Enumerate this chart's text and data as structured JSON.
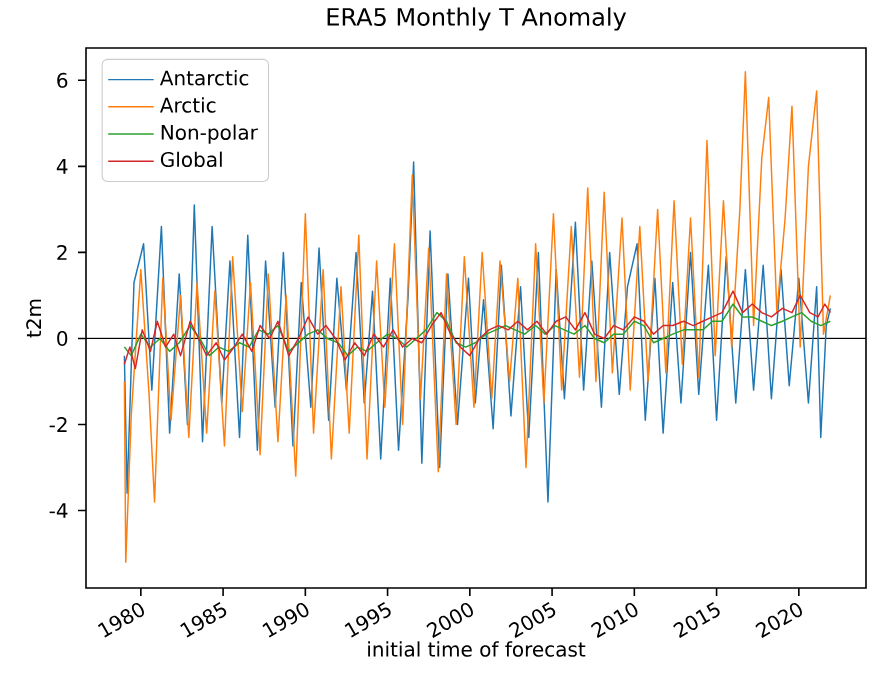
{
  "chart_data": {
    "type": "line",
    "title": "ERA5 Monthly T Anomaly",
    "xlabel": "initial time of forecast",
    "ylabel": "t2m",
    "xlim": [
      "1976-09",
      "2024-02"
    ],
    "xticks": [
      "1980",
      "1985",
      "1990",
      "1995",
      "2000",
      "2005",
      "2010",
      "2015",
      "2020"
    ],
    "ylim": [
      -5.8,
      6.75
    ],
    "yticks": [
      -4,
      -2,
      0,
      2,
      4,
      6
    ],
    "grid": false,
    "legend": "top left",
    "marker": "none",
    "line_style": "solid",
    "ref_lines": [
      {
        "axis": "y",
        "value": 0,
        "color": "#000000"
      }
    ],
    "series": [
      {
        "name": "Antarctic",
        "color": "#1f77b4",
        "x": [
          "1979-01",
          "1979-03",
          "1979-08",
          "1980-03",
          "1980-09",
          "1981-04",
          "1981-10",
          "1982-05",
          "1982-11",
          "1983-04",
          "1983-10",
          "1984-05",
          "1984-12",
          "1985-06",
          "1986-01",
          "1986-07",
          "1987-02",
          "1987-08",
          "1988-03",
          "1988-09",
          "1989-04",
          "1989-10",
          "1990-05",
          "1990-11",
          "1991-06",
          "1991-12",
          "1992-07",
          "1993-02",
          "1993-08",
          "1994-02",
          "1994-08",
          "1995-03",
          "1995-09",
          "1996-04",
          "1996-08",
          "1997-02",
          "1997-08",
          "1998-03",
          "1998-09",
          "1999-04",
          "1999-12",
          "2000-05",
          "2000-11",
          "2001-06",
          "2001-12",
          "2002-07",
          "2003-02",
          "2003-08",
          "2004-03",
          "2004-10",
          "2005-04",
          "2005-10",
          "2006-06",
          "2006-12",
          "2007-06",
          "2008-01",
          "2008-07",
          "2009-02",
          "2009-08",
          "2010-03",
          "2010-09",
          "2011-04",
          "2011-10",
          "2012-05",
          "2012-11",
          "2013-06",
          "2013-12",
          "2014-07",
          "2015-01",
          "2015-08",
          "2016-03",
          "2016-10",
          "2017-04",
          "2017-11",
          "2018-05",
          "2018-12",
          "2019-06",
          "2020-01",
          "2020-08",
          "2021-02",
          "2021-05",
          "2021-09",
          "2021-12"
        ],
        "values": [
          -0.4,
          -3.6,
          1.3,
          2.2,
          -1.2,
          2.6,
          -2.2,
          1.5,
          -2.0,
          3.1,
          -2.4,
          2.6,
          -1.5,
          1.8,
          -2.3,
          2.4,
          -2.6,
          1.8,
          -1.6,
          2.0,
          -2.5,
          1.3,
          -1.6,
          2.1,
          -1.9,
          1.4,
          -1.2,
          2.0,
          -1.5,
          1.1,
          -2.8,
          1.4,
          -2.6,
          1.0,
          4.1,
          -2.9,
          2.5,
          -3.0,
          1.5,
          -2.0,
          1.4,
          -1.5,
          0.9,
          -2.1,
          1.7,
          -1.8,
          1.2,
          -2.3,
          2.0,
          -3.8,
          1.6,
          -1.4,
          2.7,
          -1.2,
          1.8,
          -1.6,
          2.0,
          -1.3,
          1.2,
          2.2,
          -1.9,
          1.4,
          -2.2,
          1.3,
          -1.5,
          2.0,
          -1.3,
          1.7,
          -1.9,
          1.9,
          -1.5,
          1.6,
          -1.2,
          1.7,
          -1.4,
          1.6,
          -1.1,
          1.4,
          -1.5,
          1.2,
          -2.3,
          0.3,
          0.7
        ]
      },
      {
        "name": "Arctic",
        "color": "#ff7f0e",
        "x": [
          "1979-01",
          "1979-02",
          "1979-06",
          "1980-01",
          "1980-07",
          "1980-11",
          "1981-05",
          "1981-11",
          "1982-06",
          "1982-12",
          "1983-06",
          "1984-01",
          "1984-07",
          "1985-02",
          "1985-08",
          "1986-03",
          "1986-09",
          "1987-04",
          "1987-10",
          "1988-05",
          "1988-11",
          "1989-06",
          "1990-01",
          "1990-07",
          "1991-02",
          "1991-08",
          "1992-03",
          "1992-09",
          "1993-04",
          "1993-10",
          "1994-05",
          "1994-11",
          "1995-06",
          "1995-12",
          "1996-07",
          "1997-01",
          "1997-07",
          "1998-02",
          "1998-08",
          "1999-03",
          "1999-09",
          "2000-04",
          "2000-10",
          "2001-05",
          "2001-11",
          "2002-06",
          "2002-12",
          "2003-06",
          "2004-01",
          "2004-07",
          "2005-02",
          "2005-08",
          "2006-03",
          "2006-09",
          "2007-03",
          "2007-09",
          "2008-03",
          "2008-09",
          "2009-04",
          "2009-10",
          "2010-05",
          "2010-11",
          "2011-06",
          "2011-12",
          "2012-06",
          "2012-12",
          "2013-06",
          "2013-12",
          "2014-06",
          "2014-12",
          "2015-06",
          "2015-12",
          "2016-06",
          "2016-10",
          "2017-04",
          "2017-10",
          "2018-03",
          "2018-09",
          "2019-03",
          "2019-08",
          "2020-02",
          "2020-08",
          "2021-02",
          "2021-07",
          "2021-12"
        ],
        "values": [
          -1.0,
          -5.2,
          -1.8,
          1.6,
          -1.3,
          -3.8,
          1.4,
          -1.9,
          1.0,
          -2.3,
          1.3,
          -2.2,
          1.1,
          -2.5,
          1.9,
          -1.7,
          1.3,
          -2.7,
          1.5,
          -2.4,
          1.0,
          -3.2,
          2.9,
          -2.2,
          1.6,
          -2.8,
          1.2,
          -2.2,
          2.4,
          -2.8,
          1.8,
          -1.6,
          2.2,
          -2.0,
          3.8,
          -1.4,
          2.1,
          -3.1,
          1.5,
          -2.0,
          1.9,
          -1.6,
          2.0,
          -1.4,
          1.8,
          -1.0,
          1.4,
          -3.0,
          2.2,
          -1.5,
          2.9,
          -1.2,
          2.6,
          -0.9,
          3.5,
          -1.0,
          3.4,
          -0.8,
          2.8,
          -1.2,
          2.6,
          -1.0,
          3.0,
          -0.8,
          3.2,
          -0.6,
          2.8,
          -0.9,
          4.6,
          -0.4,
          3.2,
          -0.2,
          3.0,
          6.2,
          0.3,
          4.2,
          5.6,
          0.6,
          2.8,
          5.4,
          -0.2,
          4.0,
          5.75,
          0.1,
          1.0
        ]
      },
      {
        "name": "Non-polar",
        "color": "#2ca02c",
        "x": [
          "1979-01",
          "1979-06",
          "1980-01",
          "1980-08",
          "1981-03",
          "1981-10",
          "1982-05",
          "1983-01",
          "1983-08",
          "1984-03",
          "1984-10",
          "1985-05",
          "1986-01",
          "1986-08",
          "1987-03",
          "1987-10",
          "1988-05",
          "1989-01",
          "1989-08",
          "1990-03",
          "1990-10",
          "1991-05",
          "1992-01",
          "1992-08",
          "1993-03",
          "1993-10",
          "1994-05",
          "1995-01",
          "1995-08",
          "1996-03",
          "1996-10",
          "1997-05",
          "1998-01",
          "1998-08",
          "1999-03",
          "1999-10",
          "2000-05",
          "2001-01",
          "2001-08",
          "2002-03",
          "2002-10",
          "2003-05",
          "2004-01",
          "2004-08",
          "2005-03",
          "2005-10",
          "2006-05",
          "2007-01",
          "2007-08",
          "2008-03",
          "2008-10",
          "2009-05",
          "2010-01",
          "2010-08",
          "2011-03",
          "2011-10",
          "2012-05",
          "2013-01",
          "2013-08",
          "2014-03",
          "2014-10",
          "2015-05",
          "2016-01",
          "2016-08",
          "2017-03",
          "2017-10",
          "2018-05",
          "2019-01",
          "2019-08",
          "2020-03",
          "2020-10",
          "2021-05",
          "2021-12"
        ],
        "values": [
          -0.2,
          -0.4,
          0.1,
          -0.2,
          0.0,
          -0.3,
          -0.1,
          0.3,
          0.0,
          -0.4,
          -0.2,
          -0.3,
          -0.1,
          -0.2,
          0.2,
          0.1,
          0.3,
          -0.3,
          -0.1,
          0.1,
          0.2,
          0.0,
          -0.1,
          -0.4,
          -0.2,
          -0.3,
          -0.1,
          0.1,
          0.0,
          -0.2,
          0.0,
          0.2,
          0.6,
          0.4,
          -0.1,
          -0.2,
          -0.1,
          0.1,
          0.2,
          0.3,
          0.2,
          0.1,
          0.3,
          0.1,
          0.3,
          0.2,
          0.1,
          0.3,
          0.0,
          -0.1,
          0.1,
          0.1,
          0.4,
          0.3,
          -0.1,
          0.0,
          0.1,
          0.2,
          0.2,
          0.2,
          0.4,
          0.4,
          0.8,
          0.5,
          0.5,
          0.4,
          0.3,
          0.4,
          0.5,
          0.6,
          0.4,
          0.3,
          0.4
        ]
      },
      {
        "name": "Global",
        "color": "#d62728",
        "x": [
          "1979-01",
          "1979-05",
          "1979-09",
          "1980-02",
          "1980-08",
          "1981-01",
          "1981-07",
          "1982-01",
          "1982-06",
          "1983-01",
          "1983-07",
          "1984-01",
          "1984-08",
          "1985-02",
          "1985-09",
          "1986-03",
          "1986-10",
          "1987-04",
          "1987-11",
          "1988-05",
          "1989-01",
          "1989-08",
          "1990-03",
          "1990-10",
          "1991-04",
          "1991-11",
          "1992-06",
          "1993-01",
          "1993-08",
          "1994-03",
          "1994-10",
          "1995-05",
          "1995-12",
          "1996-07",
          "1997-02",
          "1997-09",
          "1998-04",
          "1998-11",
          "1999-06",
          "2000-01",
          "2000-08",
          "2001-03",
          "2001-10",
          "2002-05",
          "2002-12",
          "2003-07",
          "2004-02",
          "2004-09",
          "2005-04",
          "2005-11",
          "2006-06",
          "2007-01",
          "2007-08",
          "2008-03",
          "2008-10",
          "2009-05",
          "2010-01",
          "2010-08",
          "2011-03",
          "2011-10",
          "2012-05",
          "2013-01",
          "2013-08",
          "2014-03",
          "2014-10",
          "2015-05",
          "2016-01",
          "2016-08",
          "2017-03",
          "2017-10",
          "2018-05",
          "2019-01",
          "2019-08",
          "2020-02",
          "2020-09",
          "2021-03",
          "2021-08",
          "2021-12"
        ],
        "values": [
          -0.6,
          -0.2,
          -0.7,
          0.2,
          -0.3,
          0.4,
          -0.2,
          0.1,
          -0.4,
          0.4,
          0.0,
          -0.4,
          -0.1,
          -0.5,
          -0.2,
          0.1,
          -0.3,
          0.3,
          0.0,
          0.4,
          -0.4,
          0.0,
          0.5,
          0.1,
          0.3,
          0.0,
          -0.5,
          -0.1,
          -0.4,
          0.1,
          -0.2,
          0.2,
          -0.2,
          0.0,
          -0.1,
          0.3,
          0.6,
          0.1,
          -0.2,
          -0.4,
          0.0,
          0.2,
          0.3,
          0.2,
          0.4,
          0.2,
          0.4,
          0.1,
          0.4,
          0.5,
          0.2,
          0.6,
          0.1,
          0.0,
          0.3,
          0.2,
          0.5,
          0.4,
          0.1,
          0.3,
          0.3,
          0.4,
          0.3,
          0.4,
          0.5,
          0.6,
          1.1,
          0.6,
          0.8,
          0.6,
          0.5,
          0.7,
          0.6,
          1.0,
          0.6,
          0.5,
          0.8,
          0.6
        ]
      }
    ]
  }
}
